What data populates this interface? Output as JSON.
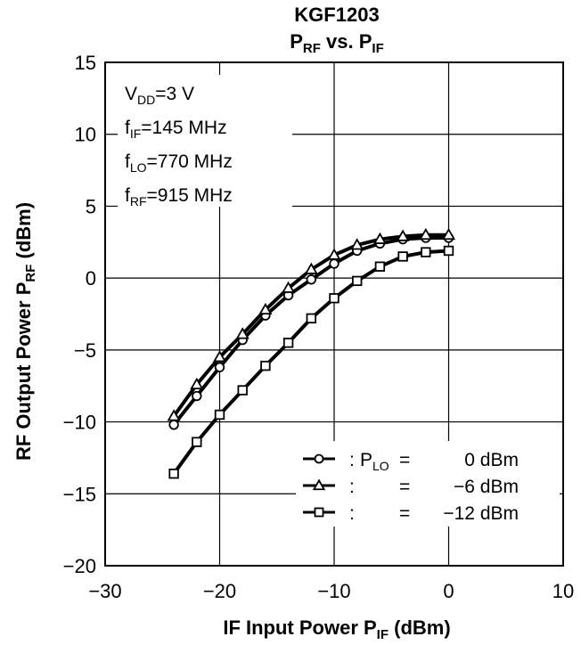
{
  "chart_data": {
    "type": "line",
    "title_line1": "KGF1203",
    "title_line2": {
      "a": "P",
      "a_sub": "RF",
      "b": " vs. P",
      "b_sub": "IF"
    },
    "xlabel": {
      "text": "IF Input Power  P",
      "sub": "IF",
      "tail": " (dBm)"
    },
    "ylabel": {
      "text": "RF Output Power  P",
      "sub": "RF",
      "tail": "  (dBm)"
    },
    "xlim": [
      -30,
      10
    ],
    "ylim": [
      -20,
      15
    ],
    "x_ticks": [
      -30,
      -20,
      -10,
      0,
      10
    ],
    "x_tick_labels": [
      "−30",
      "−20",
      "−10",
      "0",
      "10"
    ],
    "y_ticks": [
      -20,
      -15,
      -10,
      -5,
      0,
      5,
      10,
      15
    ],
    "y_tick_labels": [
      "−20",
      "−15",
      "−10",
      "−5",
      "0",
      "5",
      "10",
      "15"
    ],
    "grid": true,
    "conditions": [
      {
        "a": "V",
        "sub": "DD",
        "b": "=3 V"
      },
      {
        "a": "f",
        "sub": "IF",
        "b": "=145 MHz"
      },
      {
        "a": "f",
        "sub": "LO",
        "b": "=770 MHz"
      },
      {
        "a": "f",
        "sub": "RF",
        "b": "=915 MHz"
      }
    ],
    "legend_placement": "lower-right",
    "x": [
      -24,
      -22,
      -20,
      -18,
      -16,
      -14,
      -12,
      -10,
      -8,
      -6,
      -4,
      -2,
      0
    ],
    "series": [
      {
        "name": "P_LO = 0 dBm",
        "marker": "circle",
        "legend": {
          "colon": ":",
          "pre": "P",
          "sub": "LO",
          "eq": "=",
          "value": "0 dBm"
        },
        "values": [
          -10.2,
          -8.2,
          -6.2,
          -4.3,
          -2.6,
          -1.2,
          -0.1,
          1.0,
          1.9,
          2.4,
          2.7,
          2.8,
          2.8
        ]
      },
      {
        "name": "P_LO = -6 dBm",
        "marker": "triangle",
        "legend": {
          "colon": ":",
          "pre": "",
          "sub": "",
          "eq": "=",
          "value": "−6 dBm"
        },
        "values": [
          -9.6,
          -7.4,
          -5.5,
          -3.9,
          -2.2,
          -0.7,
          0.6,
          1.6,
          2.3,
          2.7,
          2.9,
          3.0,
          3.0
        ]
      },
      {
        "name": "P_LO = -12 dBm",
        "marker": "square",
        "legend": {
          "colon": ":",
          "pre": "",
          "sub": "",
          "eq": "=",
          "value": "−12 dBm"
        },
        "values": [
          -13.6,
          -11.4,
          -9.5,
          -7.8,
          -6.1,
          -4.5,
          -2.8,
          -1.4,
          -0.2,
          0.8,
          1.5,
          1.8,
          1.9
        ]
      }
    ]
  }
}
